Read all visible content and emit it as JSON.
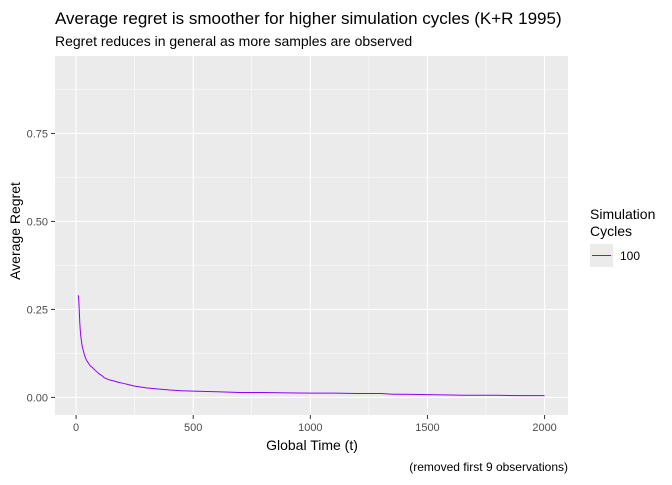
{
  "chart_data": {
    "type": "line",
    "title": "Average regret is smoother for higher simulation cycles (K+R 1995)",
    "subtitle": "Regret reduces in general as more samples are observed",
    "xlabel": "Global Time (t)",
    "ylabel": "Average Regret",
    "caption": "(removed first 9 observations)",
    "xlim": [
      -90,
      2100
    ],
    "ylim": [
      -0.05,
      0.97
    ],
    "x_ticks": [
      0,
      500,
      1000,
      1500,
      2000
    ],
    "x_tick_labels": [
      "0",
      "500",
      "1000",
      "1500",
      "2000"
    ],
    "y_ticks": [
      0.0,
      0.25,
      0.5,
      0.75
    ],
    "y_tick_labels": [
      "0.00",
      "0.25",
      "0.50",
      "0.75"
    ],
    "grid": true,
    "legend": {
      "title_line1": "Simulation",
      "title_line2": "Cycles",
      "position": "right",
      "entries": [
        {
          "label": "100",
          "color": "#8F00FF"
        }
      ]
    },
    "series": [
      {
        "name": "100",
        "color": "#8F00FF",
        "x": [
          10,
          12,
          14,
          16,
          18,
          20,
          22,
          25,
          28,
          32,
          36,
          40,
          45,
          50,
          55,
          60,
          70,
          80,
          90,
          100,
          110,
          120,
          140,
          160,
          180,
          200,
          250,
          300,
          350,
          400,
          450,
          500,
          600,
          700,
          800,
          900,
          1000,
          1100,
          1200,
          1300,
          1350,
          1400,
          1500,
          1600,
          1650,
          1700,
          1800,
          1900,
          2000
        ],
        "y": [
          0.29,
          0.27,
          0.24,
          0.21,
          0.19,
          0.175,
          0.165,
          0.15,
          0.14,
          0.13,
          0.12,
          0.113,
          0.105,
          0.1,
          0.095,
          0.09,
          0.085,
          0.078,
          0.072,
          0.066,
          0.062,
          0.056,
          0.05,
          0.047,
          0.043,
          0.04,
          0.032,
          0.027,
          0.024,
          0.021,
          0.019,
          0.018,
          0.016,
          0.014,
          0.014,
          0.013,
          0.012,
          0.012,
          0.011,
          0.011,
          0.009,
          0.009,
          0.008,
          0.007,
          0.006,
          0.006,
          0.006,
          0.005,
          0.005
        ]
      }
    ]
  }
}
